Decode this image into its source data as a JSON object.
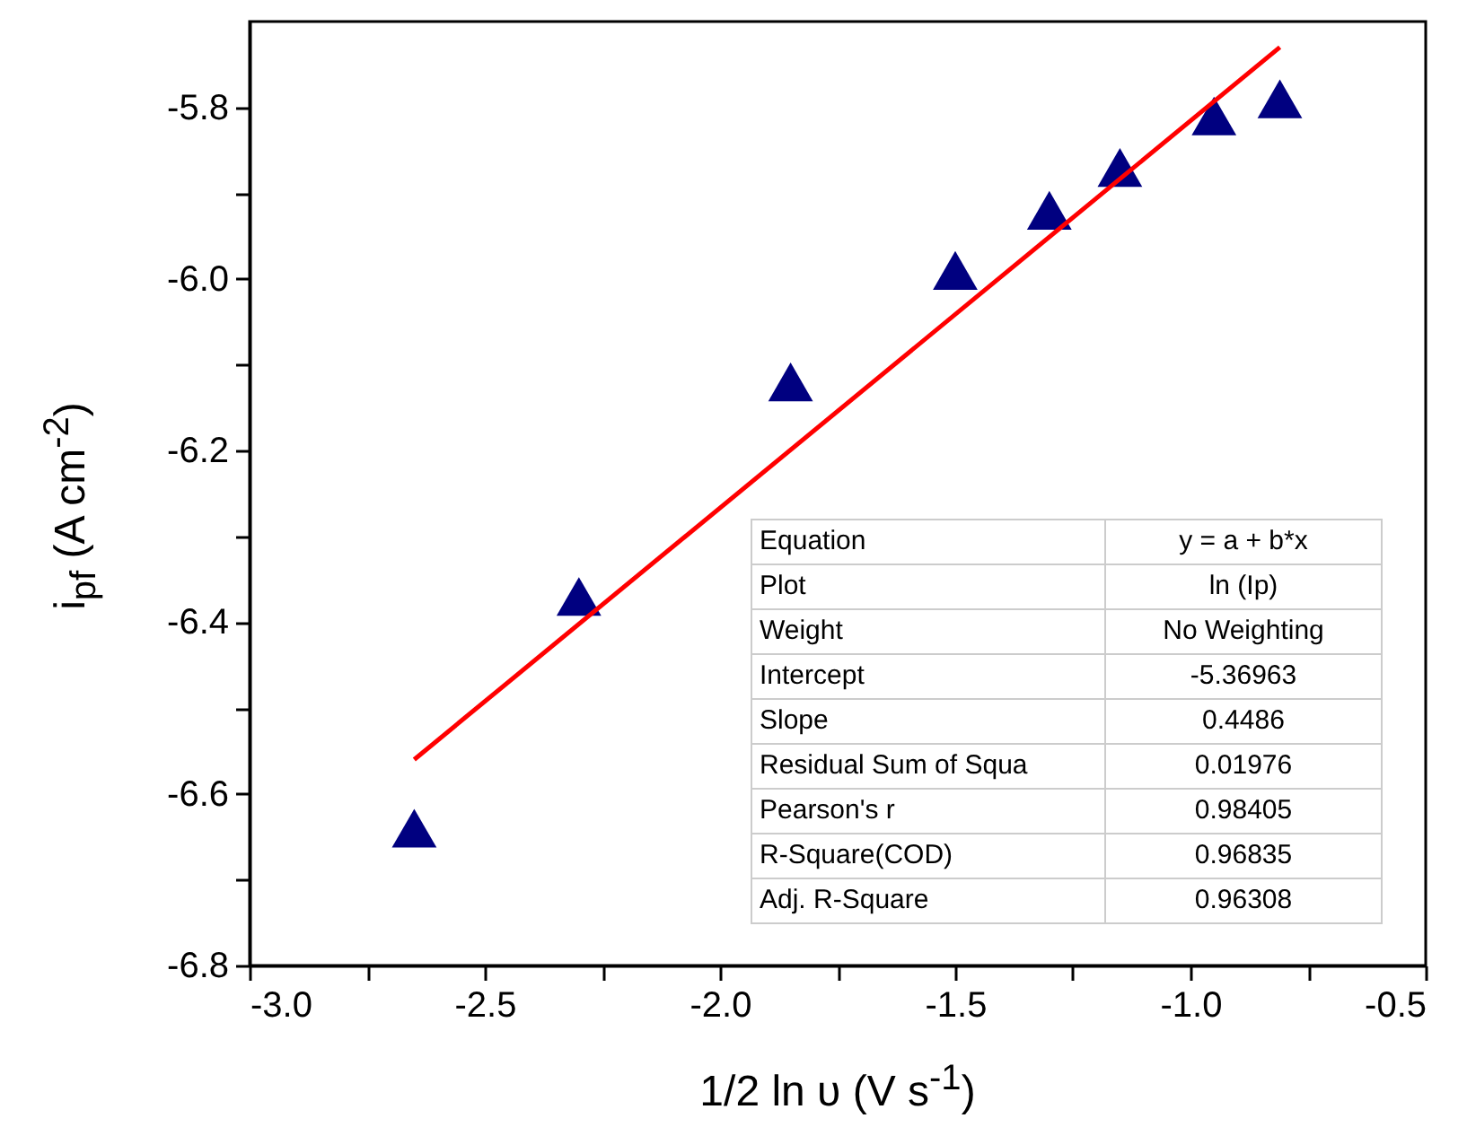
{
  "chart_data": {
    "type": "scatter",
    "xlabel": "1/2 ln υ (V s$^{-1}$)",
    "ylabel": "i$_{pf}$ (A cm$^{-2}$)",
    "x": [
      -2.65,
      -2.3,
      -1.85,
      -1.5,
      -1.3,
      -1.15,
      -0.95,
      -0.81
    ],
    "series": [
      {
        "color": "#000080",
        "marker": "triangle",
        "values": [
          -6.64,
          -6.37,
          -6.12,
          -5.99,
          -5.92,
          -5.87,
          -5.81,
          -5.79
        ]
      },
      {
        "type": "line",
        "color": "#ff0000",
        "x": [
          -2.65,
          -0.81
        ],
        "values": [
          -6.56,
          -5.73
        ]
      }
    ],
    "xlim": [
      -3.0,
      -0.5
    ],
    "xticks": [
      {
        "value": -3,
        "label": "-3.0"
      },
      {
        "value": -2.75,
        "label": null
      },
      -2.5,
      {
        "value": -2.25,
        "label": null
      },
      {
        "value": -2,
        "label": "-2.0"
      },
      {
        "value": -1.75,
        "label": null
      },
      -1.5,
      {
        "value": -1.25,
        "label": null
      },
      {
        "value": -1,
        "label": "-1.0"
      },
      {
        "value": -0.75,
        "label": null
      },
      -0.5
    ],
    "ylim": [
      -6.8,
      -5.7
    ],
    "yticks": [
      -6.8,
      {
        "value": -6.7,
        "label": null
      },
      -6.6,
      {
        "value": -6.5,
        "label": null
      },
      -6.4,
      {
        "value": -6.3,
        "label": null
      },
      -6.2,
      {
        "value": -6.1,
        "label": null
      },
      {
        "value": -6,
        "label": "-6.0"
      },
      {
        "value": -5.9,
        "label": null
      },
      -5.8
    ],
    "grid": false,
    "annotations": [
      "Equation",
      "y = a + b*x",
      "Plot",
      "ln (Ip)",
      "Weight",
      "No Weighting",
      "Intercept",
      "-5.36963",
      "Slope",
      "0.4486",
      "Residual Sum of Squa",
      "0.01976",
      "Pearson's r",
      "0.98405",
      "R-Square(COD)",
      "0.96835",
      "Adj. R-Square",
      "0.96308"
    ]
  }
}
